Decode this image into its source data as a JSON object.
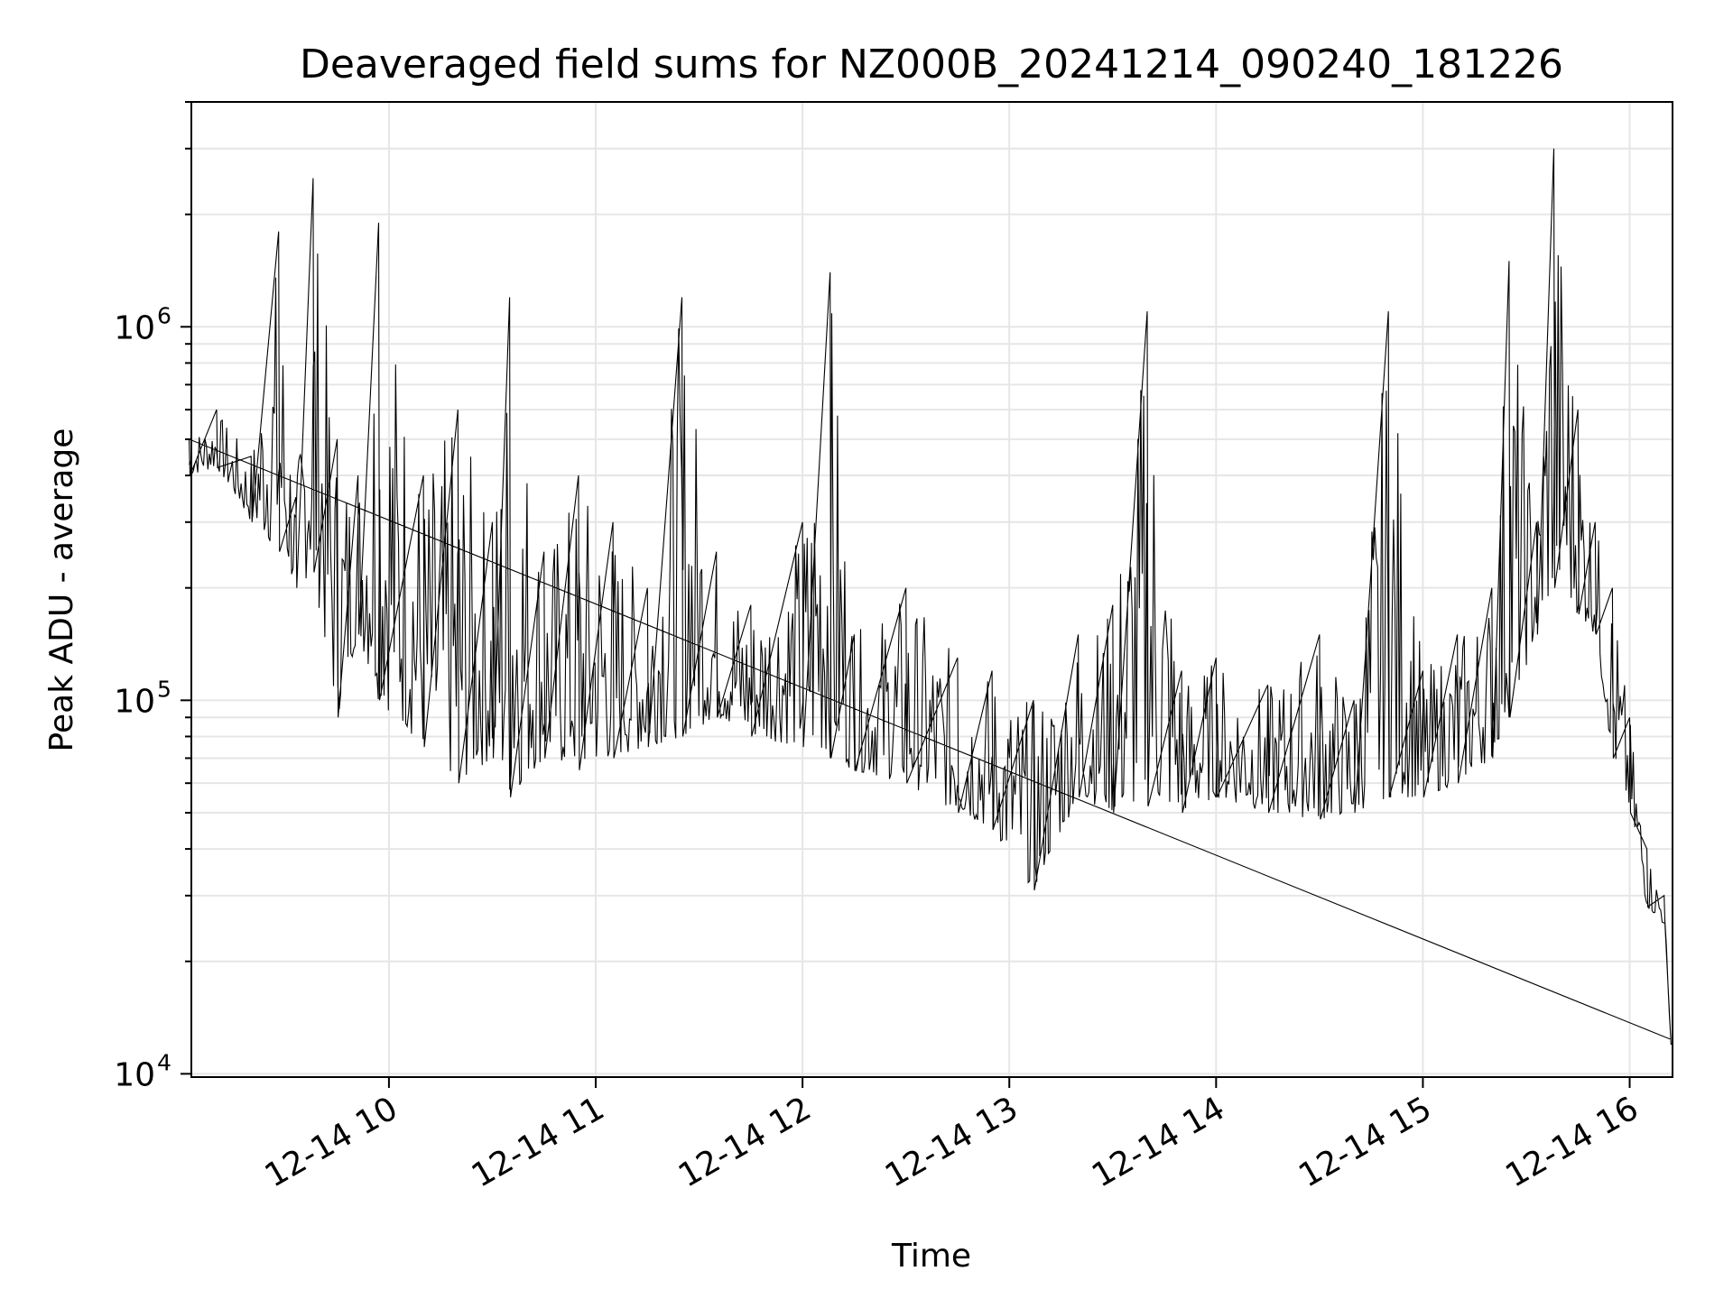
{
  "chart_data": {
    "type": "line",
    "title": "Deaveraged field sums for NZ000B_20241214_090240_181226",
    "xlabel": "Time",
    "ylabel": "Peak ADU - average",
    "yscale": "log",
    "ylim": [
      9800,
      4000000
    ],
    "xlim": [
      "2024-12-14 09:02:40",
      "2024-12-14 16:12:26"
    ],
    "grid": true,
    "line_color": "#000000",
    "x_ticks": [
      {
        "value": "2024-12-14 10:00",
        "label": "12-14 10"
      },
      {
        "value": "2024-12-14 11:00",
        "label": "12-14 11"
      },
      {
        "value": "2024-12-14 12:00",
        "label": "12-14 12"
      },
      {
        "value": "2024-12-14 13:00",
        "label": "12-14 13"
      },
      {
        "value": "2024-12-14 14:00",
        "label": "12-14 14"
      },
      {
        "value": "2024-12-14 15:00",
        "label": "12-14 15"
      },
      {
        "value": "2024-12-14 16:00",
        "label": "12-14 16"
      }
    ],
    "y_ticks": [
      {
        "value": 10000,
        "base": "10",
        "exp": "4"
      },
      {
        "value": 100000,
        "base": "10",
        "exp": "5"
      },
      {
        "value": 1000000,
        "base": "10",
        "exp": "6"
      }
    ],
    "series": [
      {
        "name": "",
        "x": [
          "2024-12-14 09:02",
          "2024-12-14 09:10",
          "2024-12-14 09:20",
          "2024-12-14 09:28",
          "2024-12-14 09:33",
          "2024-12-14 09:38",
          "2024-12-14 09:45",
          "2024-12-14 09:51",
          "2024-12-14 09:57",
          "2024-12-14 10:10",
          "2024-12-14 10:20",
          "2024-12-14 10:30",
          "2024-12-14 10:35",
          "2024-12-14 10:45",
          "2024-12-14 10:55",
          "2024-12-14 11:05",
          "2024-12-14 11:15",
          "2024-12-14 11:25",
          "2024-12-14 11:35",
          "2024-12-14 11:45",
          "2024-12-14 12:00",
          "2024-12-14 12:08",
          "2024-12-14 12:15",
          "2024-12-14 12:30",
          "2024-12-14 12:45",
          "2024-12-14 12:55",
          "2024-12-14 13:07",
          "2024-12-14 13:20",
          "2024-12-14 13:30",
          "2024-12-14 13:40",
          "2024-12-14 13:50",
          "2024-12-14 14:00",
          "2024-12-14 14:15",
          "2024-12-14 14:30",
          "2024-12-14 14:40",
          "2024-12-14 14:50",
          "2024-12-14 15:00",
          "2024-12-14 15:10",
          "2024-12-14 15:20",
          "2024-12-14 15:25",
          "2024-12-14 15:33",
          "2024-12-14 15:38",
          "2024-12-14 15:45",
          "2024-12-14 15:50",
          "2024-12-14 15:55",
          "2024-12-14 16:00",
          "2024-12-14 16:05",
          "2024-12-14 16:10",
          "2024-12-14 16:12"
        ],
        "y": [
          500000,
          600000,
          450000,
          1800000,
          350000,
          2500000,
          500000,
          400000,
          1900000,
          400000,
          600000,
          300000,
          1200000,
          250000,
          400000,
          300000,
          200000,
          1200000,
          250000,
          180000,
          300000,
          1400000,
          150000,
          200000,
          130000,
          120000,
          100000,
          150000,
          180000,
          1100000,
          120000,
          130000,
          110000,
          150000,
          100000,
          1100000,
          120000,
          150000,
          200000,
          1500000,
          300000,
          3000000,
          600000,
          300000,
          200000,
          90000,
          40000,
          30000,
          12000
        ],
        "low": [
          400000,
          420000,
          300000,
          250000,
          200000,
          220000,
          90000,
          150000,
          100000,
          75000,
          60000,
          70000,
          55000,
          70000,
          65000,
          70000,
          75000,
          80000,
          90000,
          80000,
          75000,
          70000,
          65000,
          60000,
          50000,
          45000,
          31000,
          55000,
          50000,
          52000,
          50000,
          55000,
          50000,
          48000,
          50000,
          55000,
          55000,
          60000,
          70000,
          90000,
          150000,
          200000,
          170000,
          150000,
          70000,
          50000,
          28000,
          25000,
          12000
        ]
      }
    ]
  }
}
